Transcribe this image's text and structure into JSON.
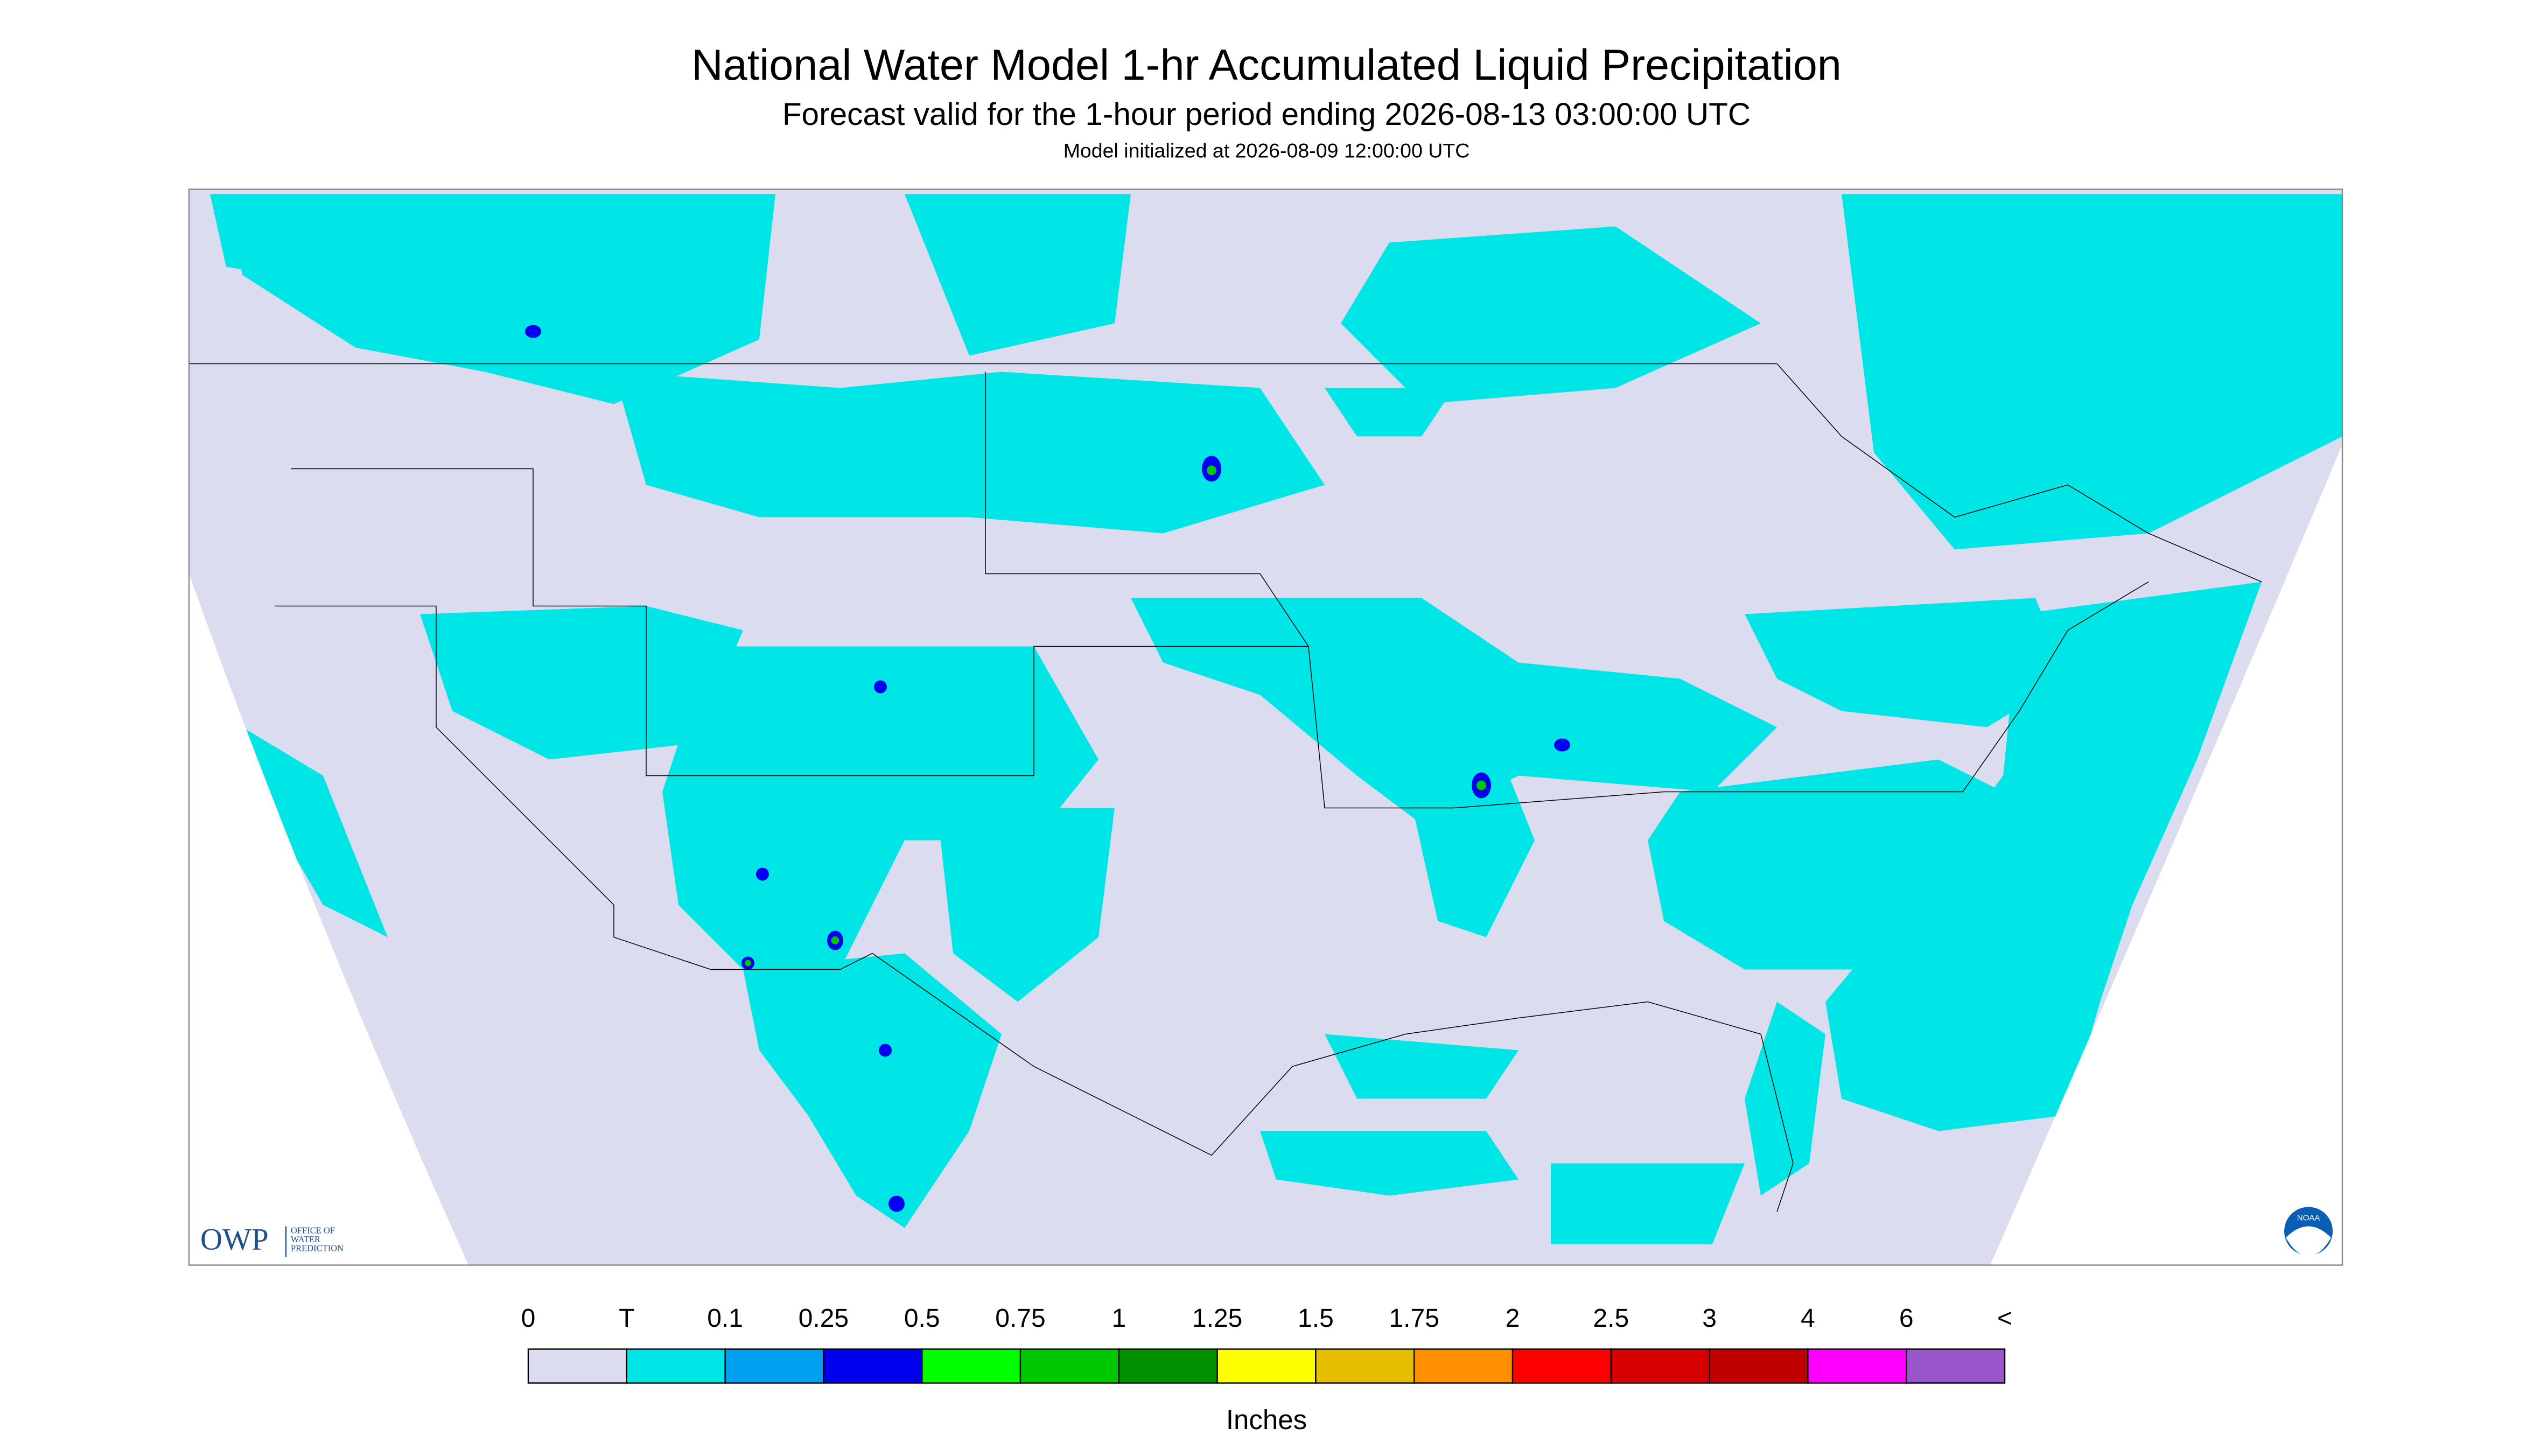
{
  "header": {
    "title": "National Water Model 1-hr Accumulated Liquid Precipitation",
    "subtitle": "Forecast valid for the 1-hour period ending 2026-08-13 03:00:00 UTC",
    "init": "Model initialized at 2026-08-09 12:00:00 UTC"
  },
  "legend": {
    "labels": [
      "0",
      "T",
      "0.1",
      "0.25",
      "0.5",
      "0.75",
      "1",
      "1.25",
      "1.5",
      "1.75",
      "2",
      "2.5",
      "3",
      "4",
      "6",
      "<"
    ],
    "colors": [
      "#dcdcf0",
      "#00e6e6",
      "#00a0f0",
      "#0000f0",
      "#00ff00",
      "#00c800",
      "#009000",
      "#ffff00",
      "#e6c000",
      "#ff9000",
      "#ff0000",
      "#d60000",
      "#c00000",
      "#ff00ff",
      "#9955c9"
    ],
    "unit": "Inches"
  },
  "logo": {
    "abbr": "OWP",
    "name": [
      "OFFICE OF",
      "WATER",
      "PREDICTION"
    ],
    "agency": "NOAA"
  }
}
